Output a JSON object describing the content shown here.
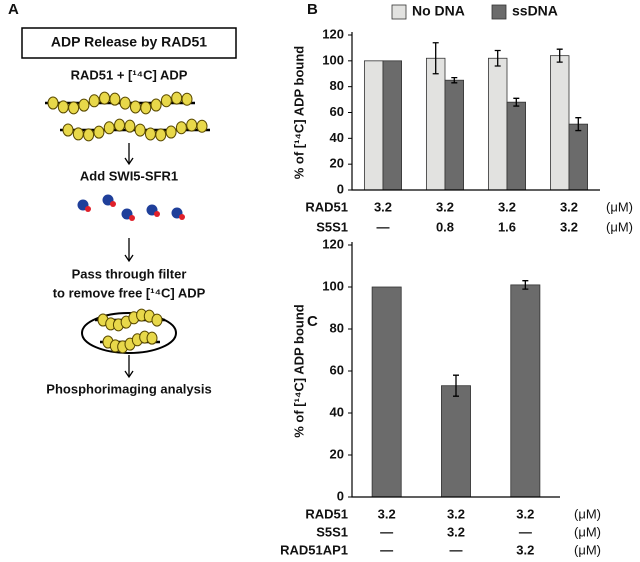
{
  "panel_a": {
    "label": "A",
    "title": "ADP Release by RAD51",
    "steps": [
      "RAD51 + [¹⁴C] ADP",
      "Add SWI5-SFR1",
      "Pass through filter",
      "to remove free [¹⁴C] ADP",
      "Phosphorimaging analysis"
    ]
  },
  "chart_data": [
    {
      "type": "bar",
      "panel": "B",
      "ylabel": "% of [¹⁴C] ADP bound",
      "categories": [
        null,
        null,
        null,
        null
      ],
      "series": [
        {
          "name": "No DNA",
          "color": "#e2e2e0",
          "values": [
            100,
            102,
            102,
            104
          ],
          "errors": [
            0,
            12,
            6,
            5
          ]
        },
        {
          "name": "ssDNA",
          "color": "#6b6b6b",
          "values": [
            100,
            85,
            68,
            51
          ],
          "errors": [
            0,
            2,
            3,
            5
          ]
        }
      ],
      "ylim": [
        0,
        120
      ],
      "yticks": [
        0,
        20,
        40,
        60,
        80,
        100,
        120
      ],
      "legend": "top",
      "conditions": [
        {
          "name": "RAD51",
          "values": [
            "3.2",
            "3.2",
            "3.2",
            "3.2"
          ],
          "unit": "(μM)"
        },
        {
          "name": "S5S1",
          "values": [
            "—",
            "0.8",
            "1.6",
            "3.2"
          ],
          "unit": "(μM)"
        }
      ]
    },
    {
      "type": "bar",
      "panel": "C",
      "ylabel": "% of [¹⁴C] ADP bound",
      "categories": [
        null,
        null,
        null
      ],
      "series": [
        {
          "color": "#6b6b6b",
          "values": [
            100,
            53,
            101
          ],
          "errors": [
            0,
            5,
            2
          ]
        }
      ],
      "ylim": [
        0,
        120
      ],
      "yticks": [
        0,
        20,
        40,
        60,
        80,
        100,
        120
      ],
      "conditions": [
        {
          "name": "RAD51",
          "values": [
            "3.2",
            "3.2",
            "3.2"
          ],
          "unit": "(μM)"
        },
        {
          "name": "S5S1",
          "values": [
            "—",
            "3.2",
            "—"
          ],
          "unit": "(μM)"
        },
        {
          "name": "RAD51AP1",
          "values": [
            "—",
            "—",
            "3.2"
          ],
          "unit": "(μM)"
        }
      ]
    }
  ]
}
